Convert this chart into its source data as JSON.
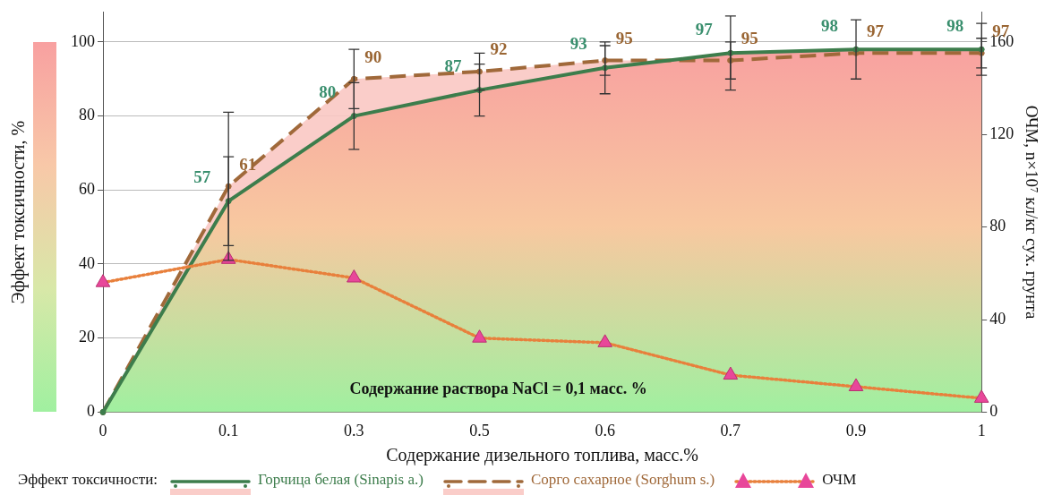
{
  "chart_data": {
    "type": "line",
    "categories": [
      "0",
      "0.1",
      "0.3",
      "0.5",
      "0.6",
      "0.7",
      "0.9",
      "1"
    ],
    "xlabel": "Содержание дизельного топлива, масс.%",
    "ylabel": "Эффект токсичности, %",
    "y2label": "ОЧМ, n×10⁷ кл/кг сух. грунта",
    "legend_title": "Эффект токсичности:",
    "annotations": [
      "Содержание раствора NaCl = 0,1 масс. %"
    ],
    "ylim": [
      0,
      108
    ],
    "yticks": [
      0,
      20,
      40,
      60,
      80,
      100
    ],
    "y2lim": [
      0,
      172.8
    ],
    "y2ticks": [
      0,
      40,
      80,
      120,
      160
    ],
    "grid": "y",
    "legend": "bottom",
    "marker": "circle",
    "series": [
      {
        "name": "Горчица белая (Sinapis a.)",
        "type": "area",
        "color": "#3d7d4c",
        "line_style": "solid",
        "values": [
          0,
          57,
          80,
          87,
          93,
          97,
          98,
          98
        ],
        "errors": [
          null,
          12,
          9,
          7,
          7,
          10,
          8,
          7
        ],
        "value_labels": [
          null,
          "57",
          "80",
          "87",
          "93",
          "97",
          "98",
          "98"
        ]
      },
      {
        "name": "Сорго сахарное (Sorghum s.)",
        "type": "area",
        "color": "#a0693a",
        "line_style": "dashed",
        "values": [
          0,
          61,
          90,
          92,
          95,
          95,
          97,
          97
        ],
        "errors": [
          null,
          20,
          8,
          5,
          4,
          5,
          null,
          4
        ],
        "value_labels": [
          null,
          "61",
          "90",
          "92",
          "95",
          "95",
          "97",
          "97"
        ]
      },
      {
        "name": "ОЧМ",
        "type": "line",
        "axis": "y2",
        "color": "#e8803c",
        "colors": [
          "#e8479a",
          "#e8479a",
          "#e8479a",
          "#e8479a",
          "#e8479a",
          "#e8479a",
          "#e8479a",
          "#e8479a"
        ],
        "marker": "triangle",
        "line_style": "dotted",
        "values": [
          56,
          66,
          58,
          32,
          30,
          16,
          11,
          6
        ]
      }
    ]
  }
}
